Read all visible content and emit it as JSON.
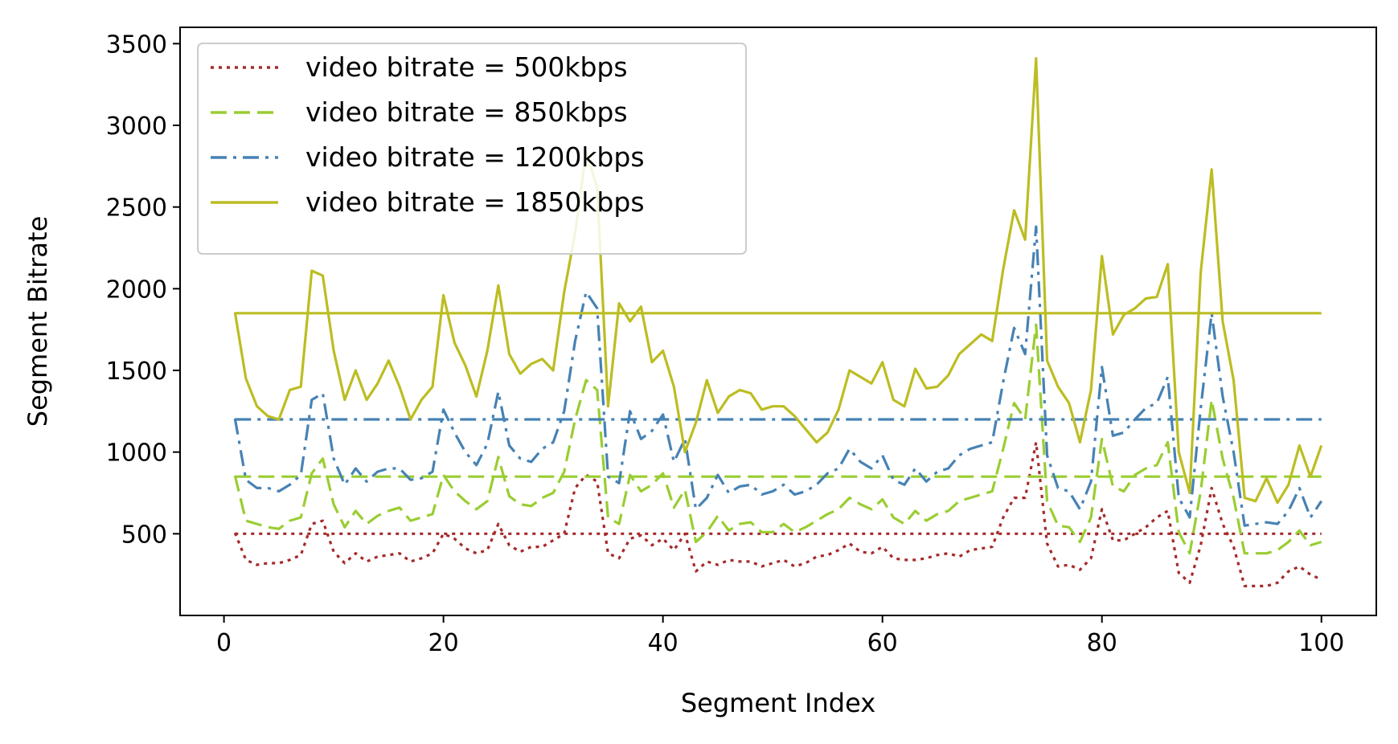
{
  "chart_data": {
    "type": "line",
    "title": "",
    "xlabel": "Segment Index",
    "ylabel": "Segment Bitrate",
    "xlim": [
      -4,
      105
    ],
    "ylim": [
      0,
      3600
    ],
    "xticks": [
      0,
      20,
      40,
      60,
      80,
      100
    ],
    "yticks": [
      500,
      1000,
      1500,
      2000,
      2500,
      3000,
      3500
    ],
    "grid": false,
    "legend_position": "top-left",
    "x": [
      1,
      2,
      3,
      4,
      5,
      6,
      7,
      8,
      9,
      10,
      11,
      12,
      13,
      14,
      15,
      16,
      17,
      18,
      19,
      20,
      21,
      22,
      23,
      24,
      25,
      26,
      27,
      28,
      29,
      30,
      31,
      32,
      33,
      34,
      35,
      36,
      37,
      38,
      39,
      40,
      41,
      42,
      43,
      44,
      45,
      46,
      47,
      48,
      49,
      50,
      51,
      52,
      53,
      54,
      55,
      56,
      57,
      58,
      59,
      60,
      61,
      62,
      63,
      64,
      65,
      66,
      67,
      68,
      69,
      70,
      71,
      72,
      73,
      74,
      75,
      76,
      77,
      78,
      79,
      80,
      81,
      82,
      83,
      84,
      85,
      86,
      87,
      88,
      89,
      90,
      91,
      92,
      93,
      94,
      95,
      96,
      97,
      98,
      99,
      100
    ],
    "series": [
      {
        "name": "video bitrate = 500kbps",
        "color": "#a52a2a",
        "dash": "dotted",
        "reference": 500,
        "values": [
          505,
          340,
          310,
          320,
          320,
          340,
          370,
          560,
          580,
          390,
          320,
          380,
          330,
          360,
          370,
          380,
          330,
          350,
          380,
          500,
          470,
          410,
          380,
          400,
          560,
          430,
          390,
          420,
          420,
          460,
          500,
          780,
          860,
          820,
          380,
          350,
          470,
          490,
          430,
          470,
          400,
          500,
          270,
          330,
          310,
          340,
          330,
          330,
          300,
          320,
          340,
          300,
          320,
          360,
          370,
          400,
          440,
          390,
          380,
          420,
          350,
          340,
          340,
          350,
          370,
          380,
          360,
          400,
          410,
          420,
          600,
          720,
          720,
          1060,
          440,
          300,
          310,
          280,
          350,
          650,
          460,
          460,
          500,
          540,
          600,
          640,
          260,
          200,
          430,
          780,
          560,
          420,
          180,
          180,
          180,
          200,
          270,
          300,
          250,
          220
        ]
      },
      {
        "name": "video bitrate = 850kbps",
        "color": "#9acd32",
        "dash": "dashed",
        "reference": 850,
        "values": [
          855,
          580,
          560,
          540,
          530,
          580,
          600,
          870,
          960,
          680,
          540,
          640,
          560,
          610,
          640,
          660,
          580,
          600,
          620,
          860,
          760,
          700,
          650,
          700,
          970,
          730,
          680,
          670,
          720,
          750,
          880,
          1200,
          1440,
          1380,
          600,
          560,
          860,
          760,
          800,
          870,
          660,
          770,
          450,
          510,
          610,
          520,
          560,
          570,
          510,
          510,
          560,
          510,
          540,
          580,
          620,
          650,
          720,
          680,
          650,
          710,
          600,
          560,
          640,
          580,
          620,
          640,
          700,
          720,
          740,
          760,
          1020,
          1300,
          1200,
          1780,
          700,
          550,
          540,
          450,
          600,
          1080,
          790,
          760,
          860,
          900,
          920,
          1060,
          510,
          380,
          760,
          1320,
          960,
          720,
          380,
          380,
          380,
          400,
          450,
          520,
          430,
          450
        ]
      },
      {
        "name": "video bitrate = 1200kbps",
        "color": "#4682b4",
        "dash": "dashdot",
        "reference": 1200,
        "values": [
          1205,
          830,
          780,
          780,
          760,
          800,
          860,
          1320,
          1360,
          960,
          800,
          900,
          820,
          880,
          900,
          900,
          830,
          840,
          880,
          1260,
          1120,
          1000,
          920,
          1050,
          1370,
          1040,
          960,
          940,
          1020,
          1060,
          1250,
          1680,
          1980,
          1880,
          850,
          810,
          1250,
          1080,
          1130,
          1230,
          940,
          1080,
          650,
          720,
          860,
          750,
          790,
          800,
          740,
          760,
          800,
          740,
          760,
          800,
          870,
          900,
          1020,
          940,
          900,
          980,
          830,
          800,
          900,
          820,
          880,
          900,
          980,
          1020,
          1040,
          1060,
          1430,
          1760,
          1600,
          2380,
          980,
          780,
          760,
          650,
          820,
          1520,
          1100,
          1120,
          1200,
          1270,
          1300,
          1460,
          720,
          600,
          1270,
          1850,
          1340,
          1000,
          550,
          560,
          570,
          560,
          640,
          780,
          600,
          700
        ]
      },
      {
        "name": "video bitrate = 1850kbps",
        "color": "#bcbd22",
        "dash": "solid",
        "reference": 1850,
        "values": [
          1855,
          1450,
          1280,
          1220,
          1200,
          1380,
          1400,
          2110,
          2080,
          1620,
          1320,
          1500,
          1320,
          1420,
          1560,
          1400,
          1200,
          1320,
          1400,
          1960,
          1670,
          1530,
          1340,
          1620,
          2020,
          1600,
          1480,
          1540,
          1570,
          1500,
          1980,
          2340,
          2840,
          2620,
          1280,
          1910,
          1800,
          1890,
          1550,
          1620,
          1400,
          1000,
          1180,
          1440,
          1240,
          1340,
          1380,
          1360,
          1260,
          1280,
          1280,
          1220,
          1140,
          1060,
          1120,
          1260,
          1500,
          1460,
          1420,
          1550,
          1320,
          1280,
          1510,
          1390,
          1400,
          1470,
          1600,
          1660,
          1720,
          1680,
          2120,
          2480,
          2300,
          3410,
          1560,
          1400,
          1300,
          1060,
          1380,
          2200,
          1720,
          1840,
          1880,
          1940,
          1950,
          2150,
          1000,
          750,
          2100,
          2730,
          1800,
          1440,
          720,
          700,
          840,
          690,
          800,
          1040,
          850,
          1040
        ]
      }
    ]
  }
}
